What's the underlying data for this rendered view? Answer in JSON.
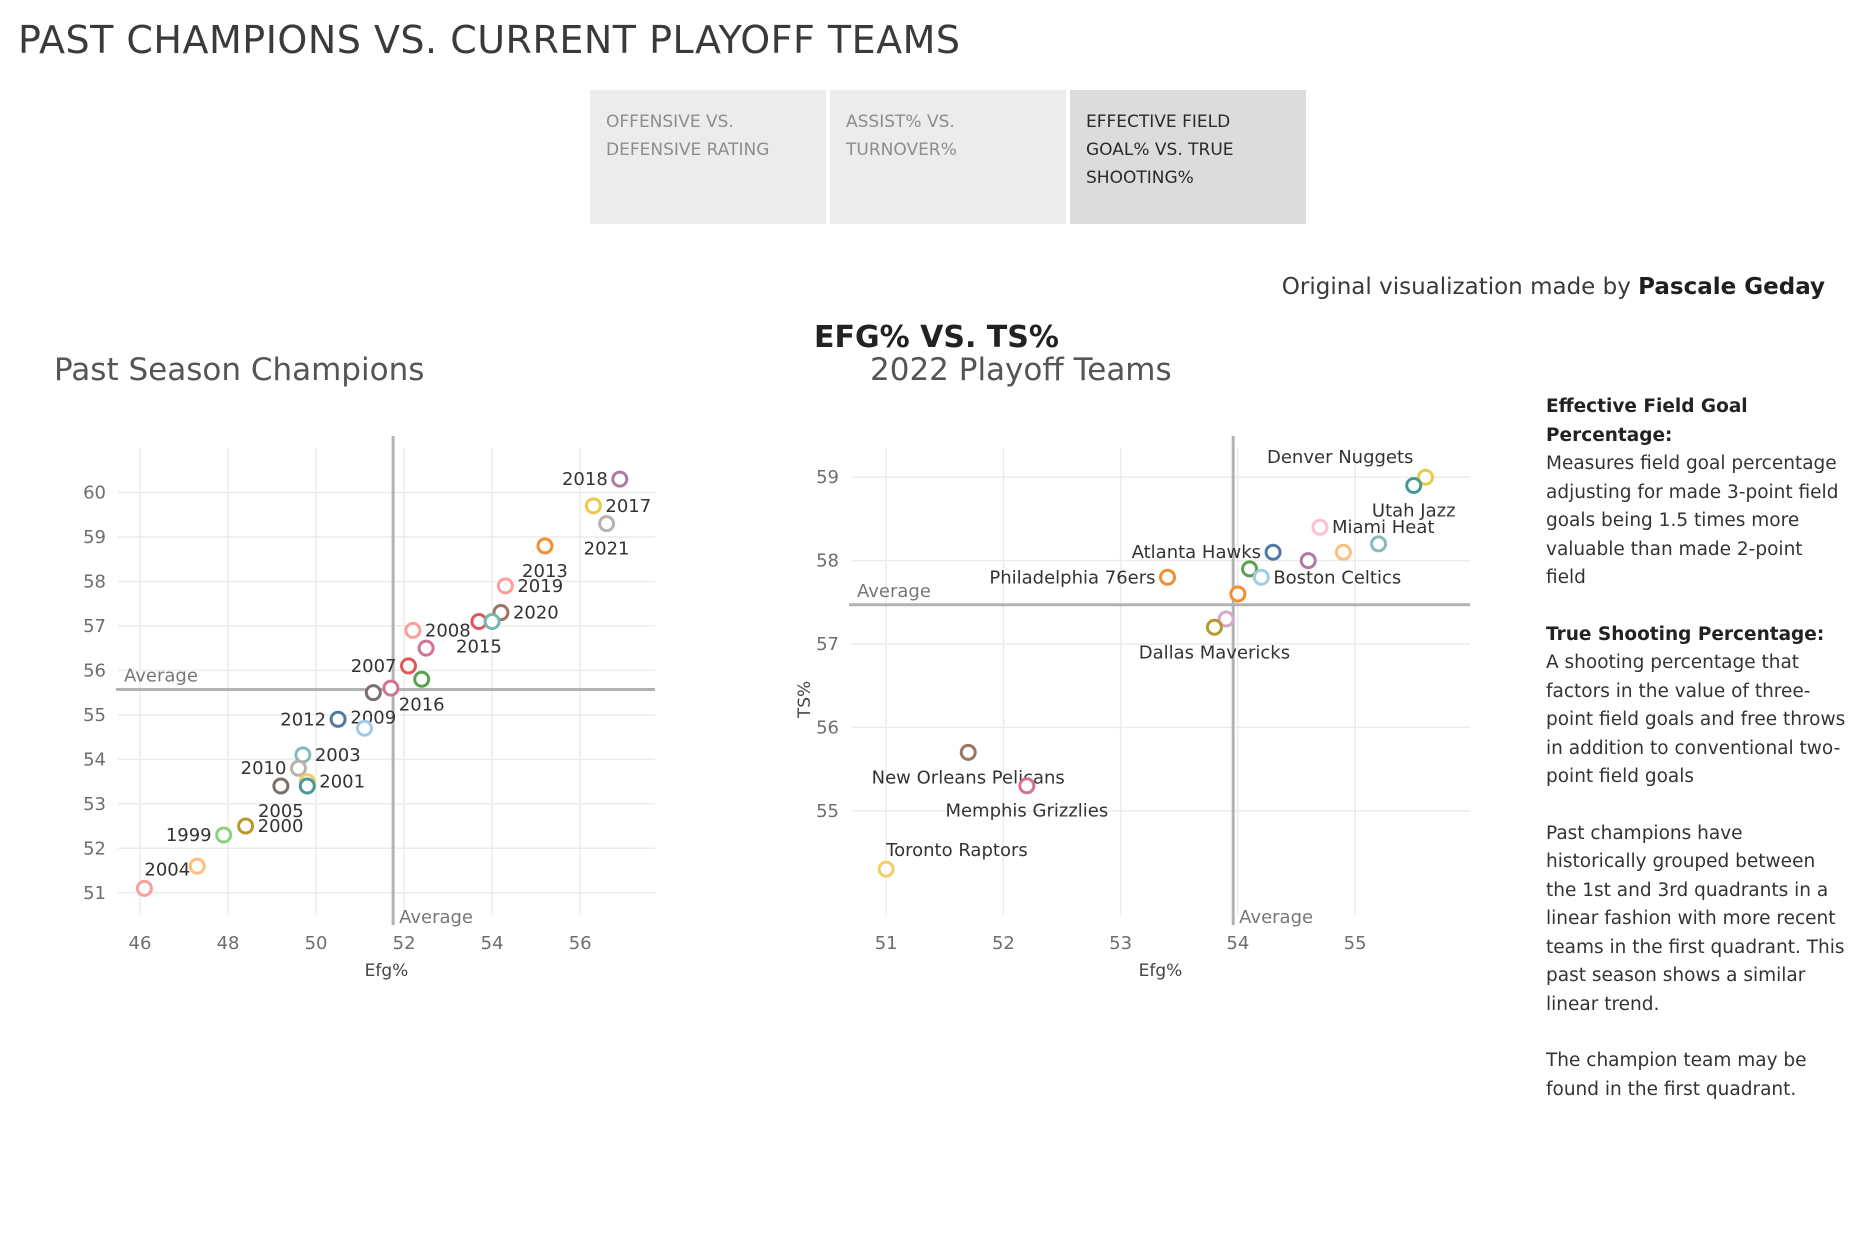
{
  "page_title": "PAST CHAMPIONS VS. CURRENT PLAYOFF TEAMS",
  "tabs": [
    {
      "label": "OFFENSIVE VS. DEFENSIVE RATING",
      "active": false
    },
    {
      "label": "ASSIST% VS. TURNOVER%",
      "active": false
    },
    {
      "label": "EFFECTIVE FIELD GOAL% VS. TRUE SHOOTING%",
      "active": true
    }
  ],
  "credit": {
    "prefix": "Original visualization made by",
    "author": "Pascale Geday"
  },
  "chart_heading": "EFG% VS. TS%",
  "chart_data": [
    {
      "type": "scatter",
      "title": "Past Season Champions",
      "xlabel": "Efg%",
      "ylabel": "TS%",
      "xlim": [
        45.5,
        57.7
      ],
      "ylim": [
        50.5,
        61.0
      ],
      "xticks": [
        46,
        48,
        50,
        52,
        54,
        56
      ],
      "yticks": [
        51,
        52,
        53,
        54,
        55,
        56,
        57,
        58,
        59,
        60
      ],
      "grid": true,
      "average": {
        "x": 51.75,
        "y": 55.57,
        "x_label": "Average",
        "y_label": "Average"
      },
      "points": [
        {
          "label": "2018",
          "x": 56.9,
          "y": 60.3,
          "color": "#b07aa1",
          "lpos": "left"
        },
        {
          "label": "2017",
          "x": 56.3,
          "y": 59.7,
          "color": "#edc948",
          "lpos": "right"
        },
        {
          "label": "2021",
          "x": 56.6,
          "y": 59.3,
          "color": "#bab0ac",
          "lpos": "below"
        },
        {
          "label": "2013",
          "x": 55.2,
          "y": 58.8,
          "color": "#f28e2b",
          "lpos": "below"
        },
        {
          "label": "2019",
          "x": 54.3,
          "y": 57.9,
          "color": "#ff9d9a",
          "lpos": "right"
        },
        {
          "label": "2020",
          "x": 54.2,
          "y": 57.3,
          "color": "#9c755f",
          "lpos": "right"
        },
        {
          "label": "2015",
          "x": 53.7,
          "y": 57.1,
          "color": "#e15759",
          "lpos": "below"
        },
        {
          "label": "",
          "x": 54.0,
          "y": 57.1,
          "color": "#76b7b2",
          "lpos": "none"
        },
        {
          "label": "2008",
          "x": 52.2,
          "y": 56.9,
          "color": "#ff9d9a",
          "lpos": "right"
        },
        {
          "label": "",
          "x": 52.5,
          "y": 56.5,
          "color": "#d37295",
          "lpos": "none"
        },
        {
          "label": "2007",
          "x": 52.1,
          "y": 56.1,
          "color": "#e15759",
          "lpos": "left"
        },
        {
          "label": "2016",
          "x": 52.4,
          "y": 55.8,
          "color": "#59a14f",
          "lpos": "below"
        },
        {
          "label": "",
          "x": 51.7,
          "y": 55.6,
          "color": "#d37295",
          "lpos": "none"
        },
        {
          "label": "2009",
          "x": 51.3,
          "y": 55.5,
          "color": "#79706e",
          "lpos": "below"
        },
        {
          "label": "2012",
          "x": 50.5,
          "y": 54.9,
          "color": "#4e79a7",
          "lpos": "left"
        },
        {
          "label": "",
          "x": 51.1,
          "y": 54.7,
          "color": "#a0cbe8",
          "lpos": "none"
        },
        {
          "label": "2003",
          "x": 49.7,
          "y": 54.1,
          "color": "#86bcb6",
          "lpos": "right"
        },
        {
          "label": "2010",
          "x": 49.6,
          "y": 53.8,
          "color": "#bab0ac",
          "lpos": "left"
        },
        {
          "label": "2001",
          "x": 49.8,
          "y": 53.5,
          "color": "#f1ce63",
          "lpos": "right"
        },
        {
          "label": "",
          "x": 49.8,
          "y": 53.4,
          "color": "#499894",
          "lpos": "none"
        },
        {
          "label": "2005",
          "x": 49.2,
          "y": 53.4,
          "color": "#79706e",
          "lpos": "below"
        },
        {
          "label": "2000",
          "x": 48.4,
          "y": 52.5,
          "color": "#b6992d",
          "lpos": "right"
        },
        {
          "label": "1999",
          "x": 47.9,
          "y": 52.3,
          "color": "#8cd17d",
          "lpos": "left"
        },
        {
          "label": "",
          "x": 47.3,
          "y": 51.6,
          "color": "#ffbe7d",
          "lpos": "none"
        },
        {
          "label": "2004",
          "x": 46.1,
          "y": 51.1,
          "color": "#ff9d9a",
          "lpos": "aboveright"
        }
      ]
    },
    {
      "type": "scatter",
      "title": "2022 Playoff Teams",
      "xlabel": "Efg%",
      "ylabel": "TS%",
      "xlim": [
        50.7,
        55.98
      ],
      "ylim": [
        53.75,
        59.35
      ],
      "xticks": [
        51,
        52,
        53,
        54,
        55
      ],
      "yticks": [
        55,
        56,
        57,
        58,
        59
      ],
      "grid": true,
      "average": {
        "x": 53.96,
        "y": 57.47,
        "x_label": "Average",
        "y_label": "Average"
      },
      "points": [
        {
          "label": "Denver Nuggets",
          "x": 55.6,
          "y": 59.0,
          "color": "#edc948",
          "lpos": "aboveleft"
        },
        {
          "label": "Utah Jazz",
          "x": 55.5,
          "y": 58.9,
          "color": "#499894",
          "lpos": "below"
        },
        {
          "label": "Miami Heat",
          "x": 54.7,
          "y": 58.4,
          "color": "#fabfd2",
          "lpos": "right"
        },
        {
          "label": "",
          "x": 55.2,
          "y": 58.2,
          "color": "#86bcb6",
          "lpos": "none"
        },
        {
          "label": "",
          "x": 54.9,
          "y": 58.1,
          "color": "#ffbe7d",
          "lpos": "none"
        },
        {
          "label": "Atlanta Hawks",
          "x": 54.3,
          "y": 58.1,
          "color": "#4e79a7",
          "lpos": "left"
        },
        {
          "label": "",
          "x": 54.6,
          "y": 58.0,
          "color": "#b07aa1",
          "lpos": "none"
        },
        {
          "label": "",
          "x": 54.1,
          "y": 57.9,
          "color": "#59a14f",
          "lpos": "none"
        },
        {
          "label": "Boston Celtics",
          "x": 54.2,
          "y": 57.8,
          "color": "#a0cbe8",
          "lpos": "right"
        },
        {
          "label": "Philadelphia 76ers",
          "x": 53.4,
          "y": 57.8,
          "color": "#f28e2b",
          "lpos": "left"
        },
        {
          "label": "",
          "x": 54.0,
          "y": 57.6,
          "color": "#f28e2b",
          "lpos": "none"
        },
        {
          "label": "",
          "x": 53.9,
          "y": 57.3,
          "color": "#d4a6c8",
          "lpos": "none"
        },
        {
          "label": "Dallas Mavericks",
          "x": 53.8,
          "y": 57.2,
          "color": "#b6992d",
          "lpos": "below"
        },
        {
          "label": "New Orleans Pelicans",
          "x": 51.7,
          "y": 55.7,
          "color": "#9c755f",
          "lpos": "below"
        },
        {
          "label": "Memphis Grizzlies",
          "x": 52.2,
          "y": 55.3,
          "color": "#d37295",
          "lpos": "below"
        },
        {
          "label": "Toronto Raptors",
          "x": 51.0,
          "y": 54.3,
          "color": "#f1ce63",
          "lpos": "aboveright"
        }
      ]
    }
  ],
  "legend": {
    "efg_term": "Effective Field Goal Percentage:",
    "efg_text": "Measures field goal percentage adjusting for made 3-point field goals being 1.5 times more valuable than made 2-point field",
    "ts_term": "True Shooting Percentage:",
    "ts_text": "A shooting percentage that factors in the value of three-point field goals and free throws in addition to conventional two-point field goals",
    "note1": "Past champions have historically grouped between the 1st and 3rd quadrants in a linear fashion with more recent teams in the first quadrant. This past season shows a similar linear trend.",
    "note2": "The champion team may be found in the first quadrant."
  }
}
